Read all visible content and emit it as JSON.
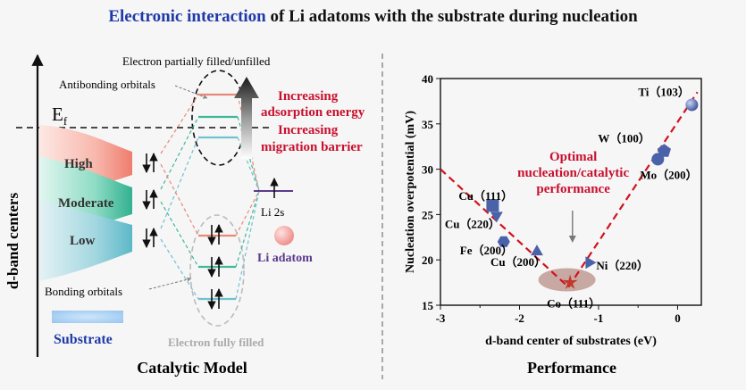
{
  "title": {
    "highlight": "Electronic interaction",
    "rest": " of Li adatoms with the substrate during nucleation"
  },
  "model": {
    "y_axis_label": "d-band centers",
    "fermi_label": "E",
    "fermi_sub": "f",
    "bands": [
      "High",
      "Moderate",
      "Low"
    ],
    "substrate_label": "Substrate",
    "partially_filled_label": "Electron partially filled/unfilled",
    "antibonding_label": "Antibonding orbitals",
    "bonding_label": "Bonding orbitals",
    "fully_filled_label": "Electron fully filled",
    "arrow_text": [
      "Increasing",
      "adsorption energy",
      "Increasing",
      "migration barrier"
    ],
    "li2s_label": "Li 2s",
    "li_adatom_label": "Li adatom",
    "panel_title": "Catalytic Model"
  },
  "chart_data": {
    "type": "scatter",
    "title": "",
    "xlabel": "d-band center of substrates (eV)",
    "ylabel": "Nucleation overpotential (mV)",
    "xlim": [
      -3,
      0.3
    ],
    "ylim": [
      15,
      40
    ],
    "xticks": [
      -3,
      -2,
      -1,
      0
    ],
    "yticks": [
      15,
      20,
      25,
      30,
      35,
      40
    ],
    "points": [
      {
        "label": "Cu（111）",
        "x": -2.34,
        "y": 26.0,
        "marker": "square"
      },
      {
        "label": "Cu（220）",
        "x": -2.29,
        "y": 24.9,
        "marker": "triangle-down"
      },
      {
        "label": "Fe（200）",
        "x": -2.2,
        "y": 22.0,
        "marker": "hexagon"
      },
      {
        "label": "Cu（200）",
        "x": -1.78,
        "y": 20.9,
        "marker": "triangle-up"
      },
      {
        "label": "Co（111）",
        "x": -1.36,
        "y": 17.5,
        "marker": "star"
      },
      {
        "label": "Ni（220）",
        "x": -1.12,
        "y": 19.7,
        "marker": "triangle-right"
      },
      {
        "label": "Mo（200）",
        "x": -0.25,
        "y": 31.1,
        "marker": "circle"
      },
      {
        "label": "W（100）",
        "x": -0.17,
        "y": 32.0,
        "marker": "pentagon"
      },
      {
        "label": "Ti（103）",
        "x": 0.18,
        "y": 37.1,
        "marker": "sphere"
      }
    ],
    "trend_lines": [
      {
        "x": [
          -3.0,
          -1.38
        ],
        "y": [
          30.0,
          17.0
        ]
      },
      {
        "x": [
          -1.38,
          0.25
        ],
        "y": [
          17.0,
          38.5
        ]
      }
    ],
    "annotation": [
      "Optimal",
      "nucleation/catalytic",
      "performance"
    ],
    "panel_title": "Performance"
  },
  "colors": {
    "accent_red": "#c8102e",
    "title_blue": "#1f3aa8",
    "marker_blue": "#4a62a8",
    "band_red": "#f08a7e",
    "band_green": "#3fb89a",
    "li_purple": "#5b3b8c"
  }
}
